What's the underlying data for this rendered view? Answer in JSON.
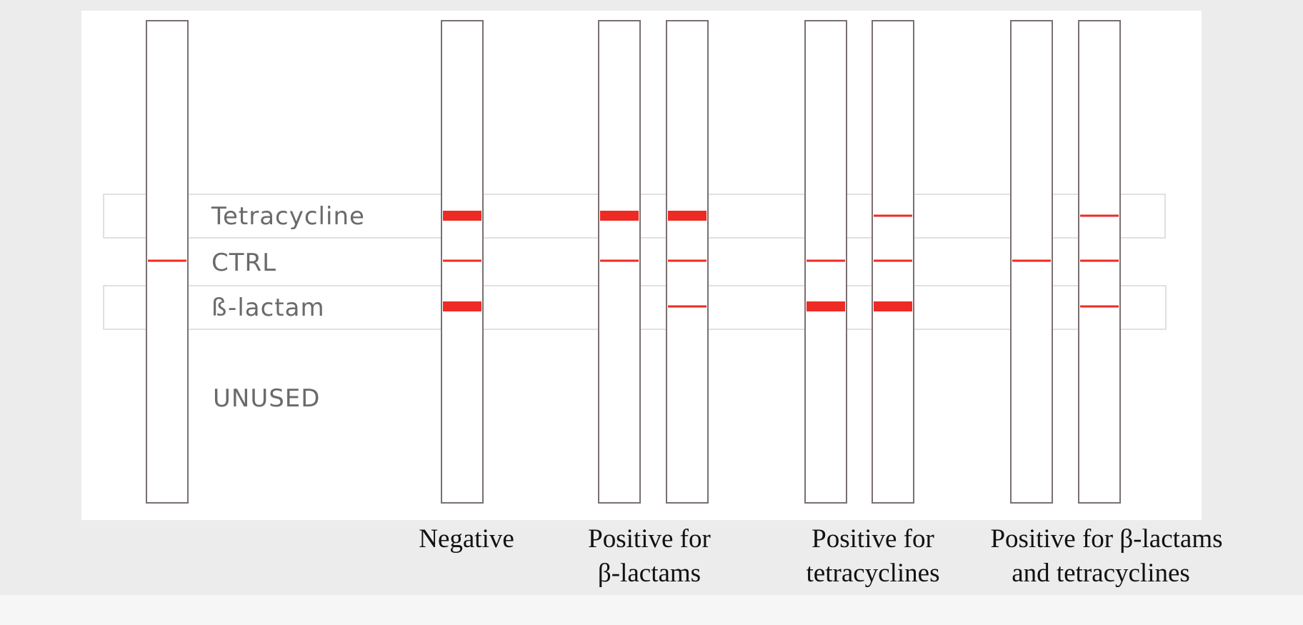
{
  "diagram": {
    "row_labels": {
      "tetracycline": "Tetracycline",
      "ctrl": "CTRL",
      "beta_lactam": "ß-lactam",
      "unused": "UNUSED"
    },
    "groups": [
      {
        "line1": "",
        "line2": ""
      },
      {
        "line1": "Negative",
        "line2": ""
      },
      {
        "line1": "Positive for",
        "line2": "β-lactams"
      },
      {
        "line1": "Positive for",
        "line2": "tetracyclines"
      },
      {
        "line1": "Positive for β-lactams",
        "line2": "and tetracyclines"
      }
    ],
    "strips": [
      {
        "group": 0,
        "tetracycline": "none",
        "ctrl": "thin",
        "beta_lactam": "none"
      },
      {
        "group": 1,
        "tetracycline": "thick",
        "ctrl": "thin",
        "beta_lactam": "thick"
      },
      {
        "group": 2,
        "tetracycline": "thick",
        "ctrl": "thin",
        "beta_lactam": "none"
      },
      {
        "group": 2,
        "tetracycline": "thick",
        "ctrl": "thin",
        "beta_lactam": "thin"
      },
      {
        "group": 3,
        "tetracycline": "none",
        "ctrl": "thin",
        "beta_lactam": "thick"
      },
      {
        "group": 3,
        "tetracycline": "thin",
        "ctrl": "thin",
        "beta_lactam": "thick"
      },
      {
        "group": 4,
        "tetracycline": "none",
        "ctrl": "thin",
        "beta_lactam": "none"
      },
      {
        "group": 4,
        "tetracycline": "thin",
        "ctrl": "thin",
        "beta_lactam": "thin"
      }
    ],
    "colors": {
      "band": "#ee2a24",
      "strip_outline": "#7a7070",
      "zone_outline": "#d6d6d6",
      "panel": "#ffffff",
      "page": "#ececec",
      "bottom_bar": "#f6f6f6"
    }
  }
}
